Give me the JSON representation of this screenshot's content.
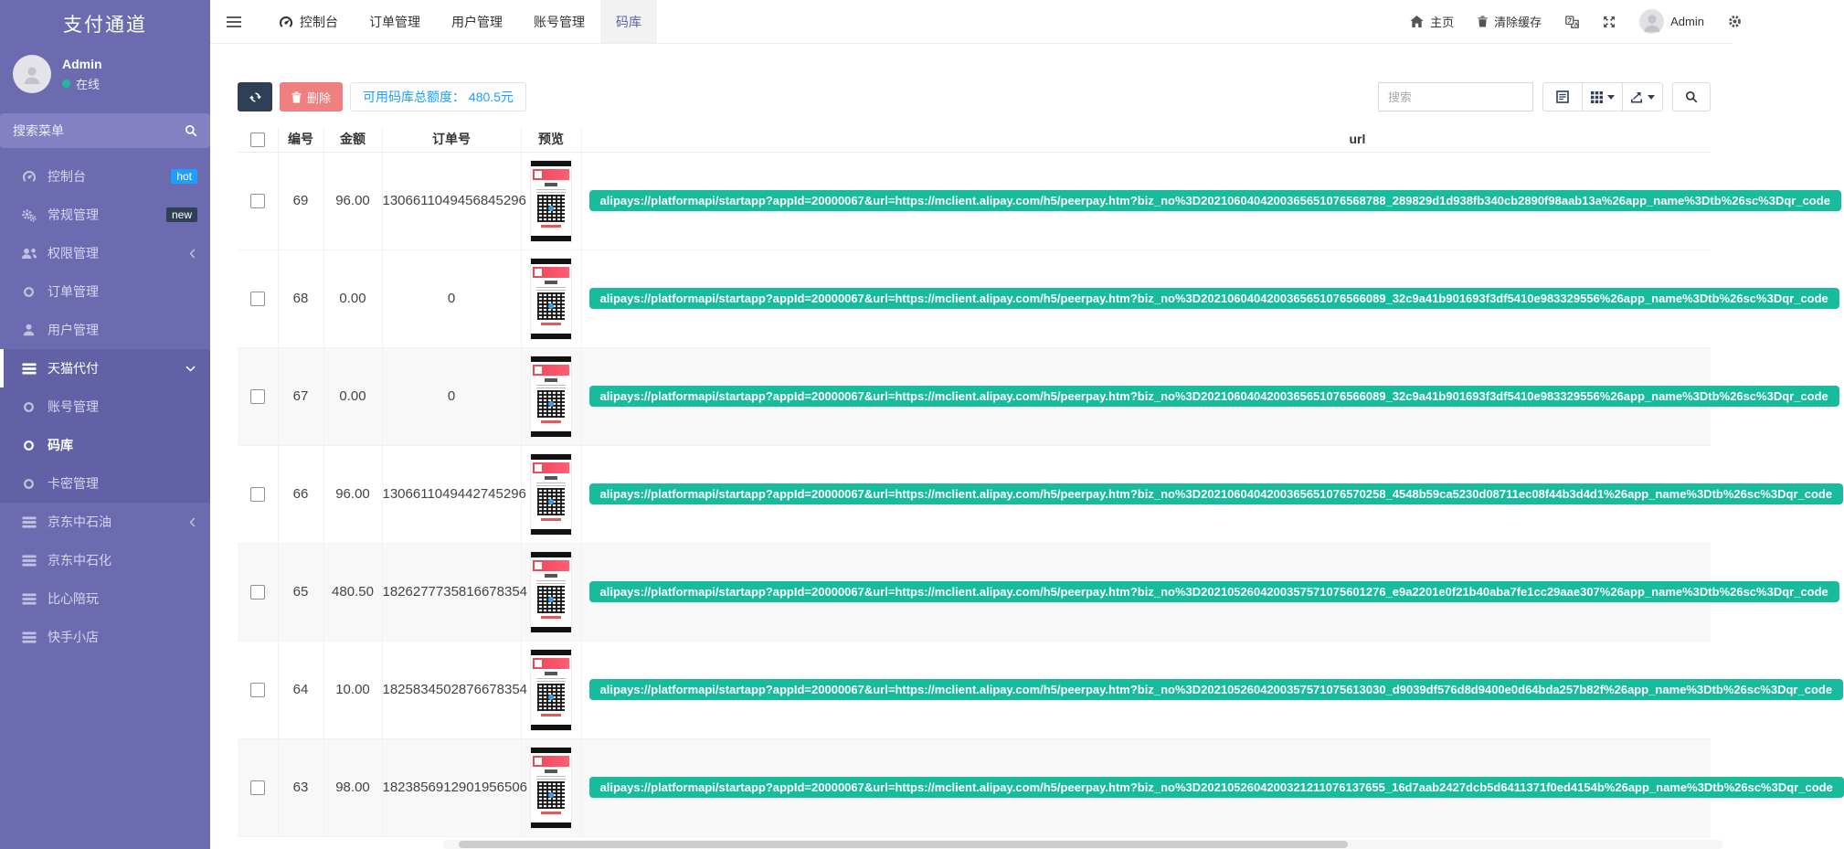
{
  "app": {
    "title": "支付通道"
  },
  "colors": {
    "sidebar": "#6d6bb0",
    "accent": "#5f5db0",
    "success_btn": "#18bc9c",
    "info_text": "#1e9fff",
    "dark_btn": "#2f4056",
    "danger_btn": "#f08080",
    "online_dot": "#1abc9c",
    "badge_hot": "#1e9fff",
    "badge_new": "#2f4056"
  },
  "sidebar": {
    "user": {
      "name": "Admin",
      "status": "在线"
    },
    "search_placeholder": "搜索菜单",
    "items": [
      {
        "key": "dashboard",
        "label": "控制台",
        "icon": "tachometer",
        "badge": "hot",
        "badge_color": "#1e9fff"
      },
      {
        "key": "general",
        "label": "常规管理",
        "icon": "cogs",
        "badge": "new",
        "badge_color": "#2f4056"
      },
      {
        "key": "permission",
        "label": "权限管理",
        "icon": "users",
        "arrow": "left"
      },
      {
        "key": "orders",
        "label": "订单管理",
        "icon": "circle"
      },
      {
        "key": "users",
        "label": "用户管理",
        "icon": "user"
      },
      {
        "key": "tmall",
        "label": "天猫代付",
        "icon": "table",
        "arrow": "down",
        "active_parent": true
      },
      {
        "key": "accounts",
        "label": "账号管理",
        "icon": "circle",
        "submenu": true
      },
      {
        "key": "codebank",
        "label": "码库",
        "icon": "circle",
        "submenu": true,
        "active": true
      },
      {
        "key": "cardkeys",
        "label": "卡密管理",
        "icon": "circle",
        "submenu": true
      },
      {
        "key": "jd-oil",
        "label": "京东中石油",
        "icon": "table",
        "arrow": "left"
      },
      {
        "key": "jd-sinopec",
        "label": "京东中石化",
        "icon": "table"
      },
      {
        "key": "bixin",
        "label": "比心陪玩",
        "icon": "table"
      },
      {
        "key": "kuaishou",
        "label": "快手小店",
        "icon": "table"
      }
    ]
  },
  "topnav": {
    "tabs": [
      {
        "key": "dashboard",
        "label": "控制台",
        "icon": "tachometer"
      },
      {
        "key": "orders",
        "label": "订单管理"
      },
      {
        "key": "users",
        "label": "用户管理"
      },
      {
        "key": "accounts",
        "label": "账号管理"
      },
      {
        "key": "codebank",
        "label": "码库",
        "active": true
      }
    ],
    "right": {
      "home": "主页",
      "clear_cache": "清除缓存",
      "user": "Admin"
    }
  },
  "toolbar": {
    "delete_label": "删除",
    "quota_text": "可用码库总额度： 480.5元",
    "search_placeholder": "搜索"
  },
  "table": {
    "columns": [
      "编号",
      "金额",
      "订单号",
      "预览",
      "url"
    ],
    "rows": [
      {
        "id": "69",
        "amount": "96.00",
        "order_no": "1306611049456845296",
        "url": "alipays://platformapi/startapp?appId=20000067&url=https://mclient.alipay.com/h5/peerpay.htm?biz_no%3D2021060404200365651076568788_289829d1d938fb340cb2890f98aab13a%26app_name%3Dtb%26sc%3Dqr_code"
      },
      {
        "id": "68",
        "amount": "0.00",
        "order_no": "0",
        "url": "alipays://platformapi/startapp?appId=20000067&url=https://mclient.alipay.com/h5/peerpay.htm?biz_no%3D2021060404200365651076566089_32c9a41b901693f3df5410e983329556%26app_name%3Dtb%26sc%3Dqr_code"
      },
      {
        "id": "67",
        "amount": "0.00",
        "order_no": "0",
        "url": "alipays://platformapi/startapp?appId=20000067&url=https://mclient.alipay.com/h5/peerpay.htm?biz_no%3D2021060404200365651076566089_32c9a41b901693f3df5410e983329556%26app_name%3Dtb%26sc%3Dqr_code"
      },
      {
        "id": "66",
        "amount": "96.00",
        "order_no": "1306611049442745296",
        "url": "alipays://platformapi/startapp?appId=20000067&url=https://mclient.alipay.com/h5/peerpay.htm?biz_no%3D2021060404200365651076570258_4548b59ca5230d08711ec08f44b3d4d1%26app_name%3Dtb%26sc%3Dqr_code"
      },
      {
        "id": "65",
        "amount": "480.50",
        "order_no": "1826277735816678354",
        "url": "alipays://platformapi/startapp?appId=20000067&url=https://mclient.alipay.com/h5/peerpay.htm?biz_no%3D2021052604200357571075601276_e9a2201e0f21b40aba7fe1cc29aae307%26app_name%3Dtb%26sc%3Dqr_code"
      },
      {
        "id": "64",
        "amount": "10.00",
        "order_no": "1825834502876678354",
        "url": "alipays://platformapi/startapp?appId=20000067&url=https://mclient.alipay.com/h5/peerpay.htm?biz_no%3D2021052604200357571075613030_d9039df576d8d9400e0d64bda257b82f%26app_name%3Dtb%26sc%3Dqr_code"
      },
      {
        "id": "63",
        "amount": "98.00",
        "order_no": "1823856912901956506",
        "url": "alipays://platformapi/startapp?appId=20000067&url=https://mclient.alipay.com/h5/peerpay.htm?biz_no%3D2021052604200321211076137655_16d7aab2427dcb5d6411371f0ed4154b%26app_name%3Dtb%26sc%3Dqr_code"
      }
    ]
  }
}
